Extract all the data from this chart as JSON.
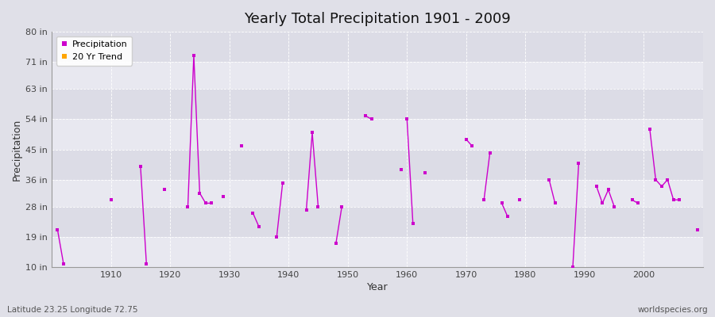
{
  "title": "Yearly Total Precipitation 1901 - 2009",
  "xlabel": "Year",
  "ylabel": "Precipitation",
  "fig_bg": "#e0e0e8",
  "ax_bg": "#e8e8f0",
  "line_color": "#cc00cc",
  "trend_color": "#ffa500",
  "yticks": [
    10,
    19,
    28,
    36,
    45,
    54,
    63,
    71,
    80
  ],
  "ytick_labels": [
    "10 in",
    "19 in",
    "28 in",
    "36 in",
    "45 in",
    "54 in",
    "63 in",
    "71 in",
    "80 in"
  ],
  "ylim": [
    10,
    80
  ],
  "xlim": [
    1900,
    2010
  ],
  "xticks": [
    1910,
    1920,
    1930,
    1940,
    1950,
    1960,
    1970,
    1980,
    1990,
    2000
  ],
  "footer_left": "Latitude 23.25 Longitude 72.75",
  "footer_right": "worldspecies.org",
  "connected_groups": [
    [
      1901,
      1902
    ],
    [
      1915,
      1916
    ],
    [
      1923,
      1924,
      1925,
      1926,
      1927
    ],
    [
      1934,
      1935
    ],
    [
      1938,
      1939
    ],
    [
      1943,
      1944,
      1945
    ],
    [
      1948,
      1949
    ],
    [
      1953,
      1954
    ],
    [
      1960,
      1961
    ],
    [
      1970,
      1971
    ],
    [
      1973,
      1974
    ],
    [
      1976,
      1977
    ],
    [
      1984,
      1985
    ],
    [
      1988,
      1989
    ],
    [
      1992,
      1993,
      1994,
      1995
    ],
    [
      1998,
      1999
    ],
    [
      2001,
      2002,
      2003,
      2004,
      2005,
      2006
    ]
  ],
  "precip_data": {
    "1901": 21,
    "1902": 11,
    "1910": 30,
    "1915": 40,
    "1916": 11,
    "1919": 33,
    "1923": 28,
    "1924": 73,
    "1925": 32,
    "1926": 29,
    "1927": 29,
    "1929": 31,
    "1932": 46,
    "1934": 26,
    "1935": 22,
    "1938": 19,
    "1939": 35,
    "1943": 27,
    "1944": 50,
    "1945": 28,
    "1948": 17,
    "1949": 28,
    "1953": 55,
    "1954": 54,
    "1959": 39,
    "1960": 54,
    "1961": 23,
    "1963": 38,
    "1970": 48,
    "1971": 46,
    "1973": 30,
    "1974": 44,
    "1976": 29,
    "1977": 25,
    "1979": 30,
    "1984": 36,
    "1985": 29,
    "1988": 10,
    "1989": 41,
    "1992": 34,
    "1993": 29,
    "1994": 33,
    "1995": 28,
    "1998": 30,
    "1999": 29,
    "2001": 51,
    "2002": 36,
    "2003": 34,
    "2004": 36,
    "2005": 30,
    "2006": 30,
    "2009": 21
  },
  "band_colors": [
    "#e8e8f0",
    "#dcdce6"
  ],
  "band_yticks": [
    10,
    19,
    28,
    36,
    45,
    54,
    63,
    71,
    80
  ]
}
